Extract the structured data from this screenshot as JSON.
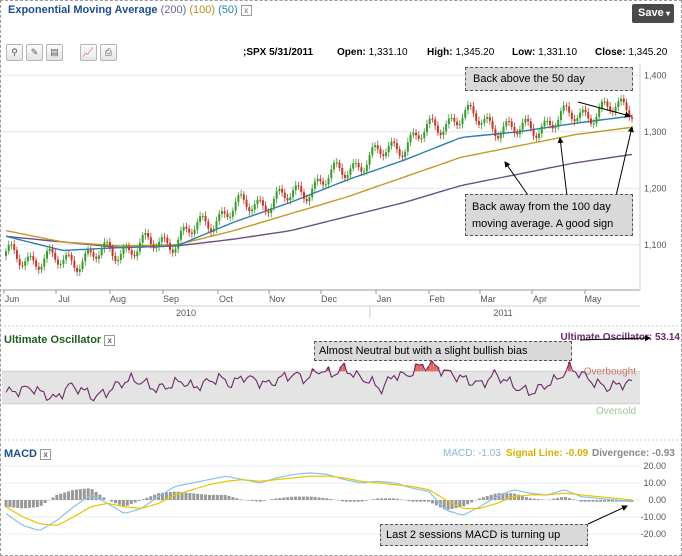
{
  "header": {
    "title": "Exponential Moving Average",
    "period_200": "(200)",
    "period_100": "(100)",
    "period_50": "(50)",
    "close_glyph": "x",
    "save_label": "Save",
    "save_caret": "▾"
  },
  "quote": {
    "symbol_date": ";SPX 5/31/2011",
    "open_label": "Open:",
    "open_value": "1,331.10",
    "high_label": "High:",
    "high_value": "1,345.20",
    "low_label": "Low:",
    "low_value": "1,331.10",
    "close_label": "Close:",
    "close_value": "1,345.20"
  },
  "toolbar": {
    "icons": [
      "zoom-icon",
      "pencil-icon",
      "notes-icon",
      "chart-icon",
      "print-icon"
    ],
    "glyphs": [
      "⚲",
      "✎",
      "▤",
      "📈",
      "⎙"
    ]
  },
  "annotations": {
    "above_50": "Back above the 50 day",
    "away_100": "Back away from the 100 day moving average. A good sign",
    "uo_note": "Almost Neutral but with a slight bullish bias",
    "macd_note": "Last 2 sessions MACD is turning up"
  },
  "colors": {
    "up_candle": "#3a9a2e",
    "down_candle": "#c0392b",
    "ema50": "#2a7fb0",
    "ema100": "#c49a26",
    "ema200": "#6a4f8a",
    "uo_line": "#6a2a6a",
    "uo_fill_over": "#e0665a",
    "macd_line": "#88c4e8",
    "signal_line": "#e8c500",
    "histogram": "#999999"
  },
  "chart_data": [
    {
      "type": "line",
      "title": "Exponential Moving Average",
      "series": [
        {
          "name": "SPX price",
          "x": [
            "Jun",
            "Jul",
            "Aug",
            "Sep",
            "Oct",
            "Nov",
            "Dec",
            "Jan",
            "Feb",
            "Mar",
            "Apr",
            "May"
          ],
          "values": [
            1080,
            1070,
            1090,
            1110,
            1165,
            1185,
            1235,
            1280,
            1330,
            1300,
            1330,
            1345
          ]
        },
        {
          "name": "EMA (200)",
          "x": [
            "Jun",
            "Jul",
            "Aug",
            "Sep",
            "Oct",
            "Nov",
            "Dec",
            "Jan",
            "Feb",
            "Mar",
            "Apr",
            "May"
          ],
          "values": [
            1115,
            1105,
            1095,
            1098,
            1110,
            1125,
            1150,
            1175,
            1205,
            1225,
            1245,
            1260
          ]
        },
        {
          "name": "EMA (100)",
          "x": [
            "Jun",
            "Jul",
            "Aug",
            "Sep",
            "Oct",
            "Nov",
            "Dec",
            "Jan",
            "Feb",
            "Mar",
            "Apr",
            "May"
          ],
          "values": [
            1125,
            1105,
            1098,
            1100,
            1125,
            1155,
            1185,
            1220,
            1255,
            1275,
            1295,
            1308
          ]
        },
        {
          "name": "EMA (50)",
          "x": [
            "Jun",
            "Jul",
            "Aug",
            "Sep",
            "Oct",
            "Nov",
            "Dec",
            "Jan",
            "Feb",
            "Mar",
            "Apr",
            "May"
          ],
          "values": [
            1115,
            1090,
            1095,
            1098,
            1140,
            1175,
            1215,
            1250,
            1290,
            1300,
            1315,
            1328
          ]
        }
      ],
      "x_tick_labels": [
        "Jun",
        "Jul",
        "Aug",
        "Sep",
        "Oct",
        "Nov",
        "Dec",
        "Jan",
        "Feb",
        "Mar",
        "Apr",
        "May"
      ],
      "x_year_labels": [
        "2010",
        "2011"
      ],
      "y_tick_labels": [
        "1,400",
        "1,300",
        "1,200",
        "1,100"
      ],
      "ylim": [
        1020,
        1420
      ],
      "grid": true
    },
    {
      "type": "line",
      "title": "Ultimate Oscillator",
      "reading_label": "Ultimate Oscillator: 53.14",
      "zone_labels": [
        "Overbought",
        "Oversold"
      ],
      "ylim": [
        30,
        70
      ],
      "overbought": 60,
      "oversold": 40,
      "series": [
        {
          "name": "Ultimate Oscillator",
          "values": [
            47,
            48,
            50,
            46,
            43,
            51,
            49,
            44,
            47,
            52,
            55,
            53,
            49,
            51,
            54,
            50,
            53,
            56,
            52,
            57,
            54,
            52,
            56,
            58,
            55,
            61,
            58,
            62,
            57,
            54,
            49,
            58,
            57,
            63,
            64,
            60,
            57,
            54,
            52,
            58,
            54,
            49,
            47,
            51,
            55,
            62,
            58,
            53,
            50,
            52,
            53
          ]
        }
      ]
    },
    {
      "type": "line",
      "title": "MACD",
      "readings": {
        "macd": "MACD: -1.03",
        "signal": "Signal Line: -0.09",
        "divergence": "Divergence: -0.93"
      },
      "y_tick_labels": [
        "20.00",
        "10.00",
        "0.00",
        "-10.00",
        "-20.00"
      ],
      "ylim": [
        -20,
        20
      ],
      "series": [
        {
          "name": "MACD",
          "values": [
            -8,
            -15,
            -18,
            -12,
            -4,
            3,
            -2,
            -8,
            -5,
            2,
            8,
            10,
            12,
            14,
            12,
            10,
            13,
            15,
            16,
            15,
            12,
            10,
            11,
            10,
            7,
            5,
            -6,
            -9,
            -4,
            2,
            6,
            4,
            3,
            6,
            2,
            1,
            0,
            -1
          ]
        },
        {
          "name": "Signal Line",
          "values": [
            -4,
            -10,
            -14,
            -15,
            -10,
            -4,
            -2,
            -4,
            -5,
            -2,
            3,
            6,
            9,
            11,
            12,
            11,
            12,
            13,
            14,
            14,
            13,
            11,
            10,
            9,
            8,
            6,
            0,
            -5,
            -5,
            -2,
            2,
            3,
            3,
            4,
            3,
            2,
            1,
            0
          ]
        },
        {
          "name": "Divergence",
          "values": [
            -4,
            -5,
            -4,
            3,
            6,
            7,
            0,
            -4,
            0,
            4,
            5,
            4,
            3,
            3,
            0,
            -1,
            1,
            2,
            2,
            1,
            -1,
            -1,
            1,
            1,
            -1,
            -1,
            -6,
            -4,
            1,
            4,
            4,
            1,
            0,
            2,
            -1,
            -1,
            -1,
            -1
          ]
        }
      ]
    }
  ]
}
